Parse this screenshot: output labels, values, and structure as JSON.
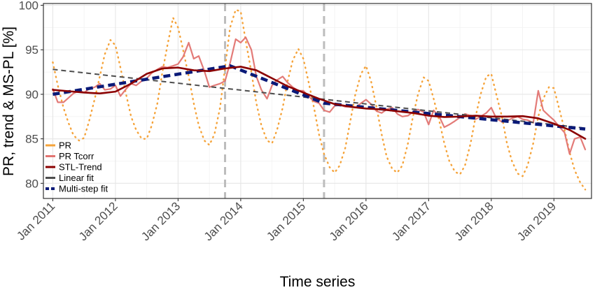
{
  "chart_data": {
    "type": "line",
    "xlabel": "Time series",
    "ylabel": "PR, trend & MS-PL [%]",
    "ylim": [
      78.3,
      100.2
    ],
    "xlim": [
      2010.85,
      2019.6
    ],
    "yticks": [
      80,
      85,
      90,
      95,
      100
    ],
    "xticks": [
      {
        "label": "Jan 2011",
        "value": 2011
      },
      {
        "label": "Jan 2012",
        "value": 2012
      },
      {
        "label": "Jan 2013",
        "value": 2013
      },
      {
        "label": "Jan 2014",
        "value": 2014
      },
      {
        "label": "Jan 2015",
        "value": 2015
      },
      {
        "label": "Jan 2016",
        "value": 2016
      },
      {
        "label": "Jan 2017",
        "value": 2017
      },
      {
        "label": "Jan 2018",
        "value": 2018
      },
      {
        "label": "Jan 2019",
        "value": 2019
      }
    ],
    "grid": true,
    "legend_position": "bottom-left",
    "vlines": [
      2013.75,
      2015.33
    ],
    "series": [
      {
        "name": "PR",
        "color": "#f5a33a",
        "style": "dotted",
        "points": [
          [
            2011.0,
            93.6
          ],
          [
            2011.08,
            91.0
          ],
          [
            2011.17,
            88.5
          ],
          [
            2011.25,
            86.8
          ],
          [
            2011.33,
            85.4
          ],
          [
            2011.42,
            84.8
          ],
          [
            2011.5,
            85.1
          ],
          [
            2011.58,
            87.0
          ],
          [
            2011.67,
            89.5
          ],
          [
            2011.75,
            92.0
          ],
          [
            2011.83,
            94.5
          ],
          [
            2011.92,
            96.1
          ],
          [
            2012.0,
            95.5
          ],
          [
            2012.08,
            93.0
          ],
          [
            2012.17,
            90.0
          ],
          [
            2012.25,
            87.5
          ],
          [
            2012.33,
            86.0
          ],
          [
            2012.42,
            85.0
          ],
          [
            2012.5,
            85.0
          ],
          [
            2012.58,
            86.5
          ],
          [
            2012.67,
            89.0
          ],
          [
            2012.75,
            92.5
          ],
          [
            2012.83,
            95.5
          ],
          [
            2012.92,
            98.6
          ],
          [
            2013.0,
            97.5
          ],
          [
            2013.08,
            95.0
          ],
          [
            2013.17,
            92.0
          ],
          [
            2013.25,
            89.0
          ],
          [
            2013.33,
            86.5
          ],
          [
            2013.42,
            84.8
          ],
          [
            2013.5,
            84.3
          ],
          [
            2013.58,
            85.5
          ],
          [
            2013.67,
            88.5
          ],
          [
            2013.75,
            93.0
          ],
          [
            2013.83,
            97.5
          ],
          [
            2013.92,
            99.5
          ],
          [
            2014.0,
            99.3
          ],
          [
            2014.08,
            96.0
          ],
          [
            2014.17,
            92.5
          ],
          [
            2014.25,
            89.0
          ],
          [
            2014.33,
            86.5
          ],
          [
            2014.42,
            84.8
          ],
          [
            2014.5,
            84.5
          ],
          [
            2014.58,
            86.0
          ],
          [
            2014.67,
            88.5
          ],
          [
            2014.75,
            91.5
          ],
          [
            2014.83,
            93.8
          ],
          [
            2014.92,
            95.1
          ],
          [
            2015.0,
            94.0
          ],
          [
            2015.08,
            91.5
          ],
          [
            2015.17,
            88.5
          ],
          [
            2015.25,
            85.5
          ],
          [
            2015.33,
            83.3
          ],
          [
            2015.42,
            81.8
          ],
          [
            2015.5,
            81.2
          ],
          [
            2015.58,
            82.0
          ],
          [
            2015.67,
            84.0
          ],
          [
            2015.75,
            87.0
          ],
          [
            2015.83,
            90.0
          ],
          [
            2015.92,
            92.3
          ],
          [
            2016.0,
            93.2
          ],
          [
            2016.08,
            91.5
          ],
          [
            2016.17,
            88.5
          ],
          [
            2016.25,
            85.5
          ],
          [
            2016.33,
            83.0
          ],
          [
            2016.42,
            81.6
          ],
          [
            2016.5,
            81.2
          ],
          [
            2016.58,
            82.0
          ],
          [
            2016.67,
            84.5
          ],
          [
            2016.75,
            87.5
          ],
          [
            2016.83,
            90.0
          ],
          [
            2016.92,
            91.9
          ],
          [
            2017.0,
            91.5
          ],
          [
            2017.08,
            89.5
          ],
          [
            2017.17,
            87.0
          ],
          [
            2017.25,
            84.5
          ],
          [
            2017.33,
            82.5
          ],
          [
            2017.42,
            81.3
          ],
          [
            2017.5,
            81.0
          ],
          [
            2017.58,
            82.0
          ],
          [
            2017.67,
            84.5
          ],
          [
            2017.75,
            87.5
          ],
          [
            2017.83,
            90.0
          ],
          [
            2017.92,
            92.0
          ],
          [
            2018.0,
            92.3
          ],
          [
            2018.08,
            90.0
          ],
          [
            2018.17,
            87.5
          ],
          [
            2018.25,
            84.5
          ],
          [
            2018.33,
            82.5
          ],
          [
            2018.42,
            81.1
          ],
          [
            2018.5,
            80.8
          ],
          [
            2018.58,
            82.0
          ],
          [
            2018.67,
            84.5
          ],
          [
            2018.75,
            87.5
          ],
          [
            2018.83,
            89.5
          ],
          [
            2018.92,
            90.8
          ],
          [
            2019.0,
            90.7
          ],
          [
            2019.08,
            88.5
          ],
          [
            2019.17,
            86.0
          ],
          [
            2019.25,
            83.5
          ],
          [
            2019.33,
            81.5
          ],
          [
            2019.42,
            80.1
          ],
          [
            2019.5,
            79.3
          ]
        ]
      },
      {
        "name": "PR  Tcorr",
        "color": "#e27471",
        "style": "solid",
        "points": [
          [
            2011.0,
            90.6
          ],
          [
            2011.08,
            89.1
          ],
          [
            2011.17,
            89.1
          ],
          [
            2011.25,
            89.6
          ],
          [
            2011.33,
            90.1
          ],
          [
            2011.42,
            90.4
          ],
          [
            2011.5,
            90.2
          ],
          [
            2011.58,
            90.6
          ],
          [
            2011.67,
            90.8
          ],
          [
            2011.75,
            91.2
          ],
          [
            2011.83,
            90.5
          ],
          [
            2011.92,
            90.6
          ],
          [
            2012.0,
            91.0
          ],
          [
            2012.08,
            89.8
          ],
          [
            2012.17,
            90.6
          ],
          [
            2012.25,
            91.2
          ],
          [
            2012.33,
            91.0
          ],
          [
            2012.42,
            91.5
          ],
          [
            2012.5,
            91.8
          ],
          [
            2012.58,
            92.4
          ],
          [
            2012.67,
            92.8
          ],
          [
            2012.75,
            93.1
          ],
          [
            2012.83,
            93.0
          ],
          [
            2012.92,
            93.2
          ],
          [
            2013.0,
            93.4
          ],
          [
            2013.08,
            94.2
          ],
          [
            2013.17,
            95.8
          ],
          [
            2013.25,
            94.0
          ],
          [
            2013.33,
            94.3
          ],
          [
            2013.42,
            92.6
          ],
          [
            2013.5,
            90.8
          ],
          [
            2013.58,
            91.0
          ],
          [
            2013.67,
            91.2
          ],
          [
            2013.75,
            91.5
          ],
          [
            2013.83,
            93.5
          ],
          [
            2013.92,
            96.2
          ],
          [
            2014.0,
            95.8
          ],
          [
            2014.08,
            96.4
          ],
          [
            2014.17,
            95.0
          ],
          [
            2014.25,
            92.0
          ],
          [
            2014.33,
            90.5
          ],
          [
            2014.42,
            89.5
          ],
          [
            2014.5,
            91.0
          ],
          [
            2014.58,
            91.6
          ],
          [
            2014.67,
            92.0
          ],
          [
            2014.75,
            91.3
          ],
          [
            2014.83,
            90.8
          ],
          [
            2014.92,
            90.4
          ],
          [
            2015.0,
            90.4
          ],
          [
            2015.08,
            89.8
          ],
          [
            2015.17,
            89.2
          ],
          [
            2015.25,
            89.0
          ],
          [
            2015.33,
            88.2
          ],
          [
            2015.42,
            88.0
          ],
          [
            2015.5,
            88.7
          ],
          [
            2015.58,
            88.8
          ],
          [
            2015.67,
            88.6
          ],
          [
            2015.75,
            88.6
          ],
          [
            2015.83,
            88.5
          ],
          [
            2015.92,
            89.0
          ],
          [
            2016.0,
            89.4
          ],
          [
            2016.08,
            88.9
          ],
          [
            2016.17,
            88.1
          ],
          [
            2016.25,
            87.9
          ],
          [
            2016.33,
            88.3
          ],
          [
            2016.42,
            88.5
          ],
          [
            2016.5,
            87.8
          ],
          [
            2016.58,
            87.5
          ],
          [
            2016.67,
            87.6
          ],
          [
            2016.75,
            88.0
          ],
          [
            2016.83,
            88.3
          ],
          [
            2016.92,
            88.0
          ],
          [
            2017.0,
            86.6
          ],
          [
            2017.08,
            88.2
          ],
          [
            2017.17,
            87.5
          ],
          [
            2017.25,
            86.3
          ],
          [
            2017.33,
            86.6
          ],
          [
            2017.42,
            87.0
          ],
          [
            2017.5,
            87.4
          ],
          [
            2017.58,
            87.8
          ],
          [
            2017.67,
            87.6
          ],
          [
            2017.75,
            87.2
          ],
          [
            2017.83,
            87.5
          ],
          [
            2017.92,
            87.9
          ],
          [
            2018.0,
            88.5
          ],
          [
            2018.08,
            87.3
          ],
          [
            2018.17,
            86.9
          ],
          [
            2018.25,
            87.0
          ],
          [
            2018.33,
            87.3
          ],
          [
            2018.42,
            87.5
          ],
          [
            2018.5,
            87.2
          ],
          [
            2018.58,
            87.1
          ],
          [
            2018.67,
            86.8
          ],
          [
            2018.75,
            90.4
          ],
          [
            2018.83,
            88.2
          ],
          [
            2018.92,
            87.6
          ],
          [
            2019.0,
            87.1
          ],
          [
            2019.08,
            86.4
          ],
          [
            2019.17,
            85.7
          ],
          [
            2019.25,
            83.3
          ],
          [
            2019.33,
            85.0
          ],
          [
            2019.42,
            85.2
          ],
          [
            2019.5,
            83.8
          ]
        ]
      },
      {
        "name": "STL-Trend",
        "color": "#8b0000",
        "style": "solid",
        "points": [
          [
            2011.0,
            90.5
          ],
          [
            2011.25,
            90.35
          ],
          [
            2011.5,
            90.2
          ],
          [
            2011.75,
            90.1
          ],
          [
            2012.0,
            90.3
          ],
          [
            2012.25,
            91.2
          ],
          [
            2012.5,
            92.3
          ],
          [
            2012.75,
            92.9
          ],
          [
            2013.0,
            93.0
          ],
          [
            2013.25,
            92.7
          ],
          [
            2013.5,
            92.6
          ],
          [
            2013.75,
            92.9
          ],
          [
            2014.0,
            93.1
          ],
          [
            2014.25,
            92.7
          ],
          [
            2014.5,
            91.8
          ],
          [
            2014.75,
            90.9
          ],
          [
            2015.0,
            90.2
          ],
          [
            2015.25,
            89.5
          ],
          [
            2015.5,
            88.9
          ],
          [
            2015.75,
            88.6
          ],
          [
            2016.0,
            88.4
          ],
          [
            2016.25,
            88.3
          ],
          [
            2016.5,
            88.1
          ],
          [
            2016.75,
            87.9
          ],
          [
            2017.0,
            87.6
          ],
          [
            2017.25,
            87.45
          ],
          [
            2017.5,
            87.5
          ],
          [
            2017.75,
            87.6
          ],
          [
            2018.0,
            87.5
          ],
          [
            2018.25,
            87.5
          ],
          [
            2018.5,
            87.55
          ],
          [
            2018.75,
            87.3
          ],
          [
            2019.0,
            86.7
          ],
          [
            2019.25,
            86.0
          ],
          [
            2019.5,
            85.0
          ]
        ]
      },
      {
        "name": "Linear fit",
        "color": "#4d4d4d",
        "style": "dashed",
        "points": [
          [
            2011.0,
            92.8
          ],
          [
            2019.5,
            86.2
          ]
        ]
      },
      {
        "name": "Multi-step fit",
        "color": "#0a1a78",
        "style": "dashed",
        "points": [
          [
            2011.0,
            90.0
          ],
          [
            2013.83,
            93.2
          ],
          [
            2015.33,
            89.0
          ],
          [
            2019.5,
            86.1
          ]
        ]
      }
    ]
  }
}
